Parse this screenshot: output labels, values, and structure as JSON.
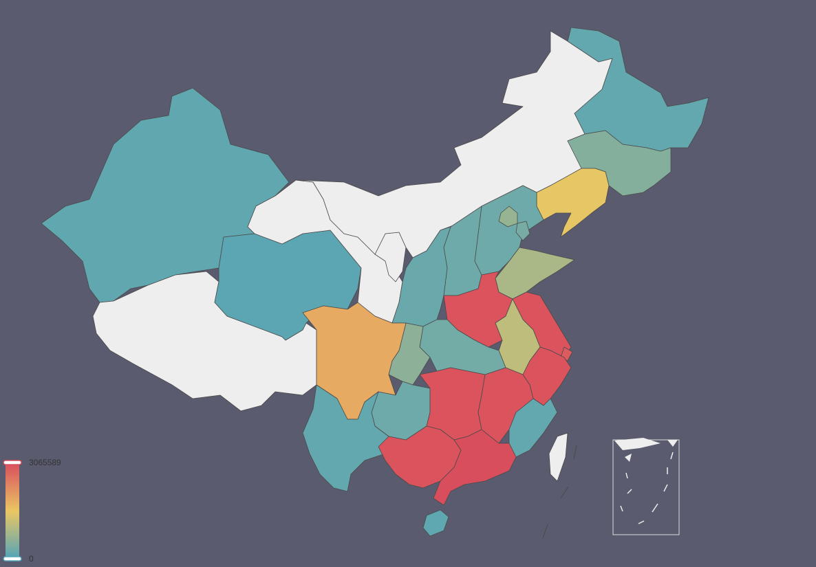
{
  "background": "#5a5b6e",
  "no_data_color": "#eeeeee",
  "visual_map": {
    "max_label": "3065589",
    "min_label": "0",
    "colors": [
      "#50a3ba",
      "#eac763",
      "#d94e5d"
    ],
    "max_value": 3065589,
    "min_value": 0
  },
  "regions": [
    {
      "id": "xinjiang",
      "value": 170000
    },
    {
      "id": "tibet",
      "value": null
    },
    {
      "id": "qinghai",
      "value": 120000
    },
    {
      "id": "gansu",
      "value": null
    },
    {
      "id": "ningxia",
      "value": null
    },
    {
      "id": "neimenggu",
      "value": null
    },
    {
      "id": "heilongjiang",
      "value": 200000
    },
    {
      "id": "jilin",
      "value": 520000
    },
    {
      "id": "liaoning",
      "value": 1500000
    },
    {
      "id": "hebei",
      "value": 300000
    },
    {
      "id": "beijing",
      "value": 700000
    },
    {
      "id": "tianjin",
      "value": 400000
    },
    {
      "id": "shanxi",
      "value": 300000
    },
    {
      "id": "shaanxi",
      "value": 250000
    },
    {
      "id": "shandong",
      "value": 900000
    },
    {
      "id": "henan",
      "value": 3000000
    },
    {
      "id": "jiangsu",
      "value": 3000000
    },
    {
      "id": "anhui",
      "value": 1100000
    },
    {
      "id": "shanghai",
      "value": 2900000
    },
    {
      "id": "zhejiang",
      "value": 3000000
    },
    {
      "id": "hubei",
      "value": 350000
    },
    {
      "id": "chongqing",
      "value": 600000
    },
    {
      "id": "sichuan",
      "value": 1900000
    },
    {
      "id": "guizhou",
      "value": 300000
    },
    {
      "id": "hunan",
      "value": 3000000
    },
    {
      "id": "jiangxi",
      "value": 3000000
    },
    {
      "id": "fujian",
      "value": 200000
    },
    {
      "id": "yunnan",
      "value": 200000
    },
    {
      "id": "guangxi",
      "value": 3000000
    },
    {
      "id": "guangdong",
      "value": 3065589
    },
    {
      "id": "hainan",
      "value": 150000
    },
    {
      "id": "taiwan",
      "value": null
    }
  ]
}
